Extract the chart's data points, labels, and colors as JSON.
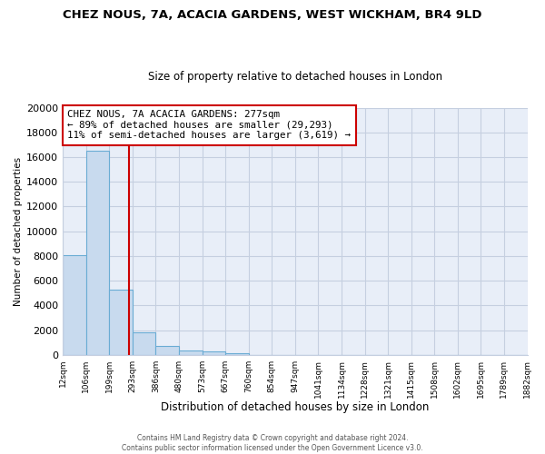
{
  "title": "CHEZ NOUS, 7A, ACACIA GARDENS, WEST WICKHAM, BR4 9LD",
  "subtitle": "Size of property relative to detached houses in London",
  "xlabel": "Distribution of detached houses by size in London",
  "ylabel": "Number of detached properties",
  "bar_values": [
    8100,
    16550,
    5300,
    1850,
    750,
    350,
    250,
    150,
    0,
    0,
    0,
    0,
    0,
    0,
    0,
    0,
    0,
    0,
    0,
    0
  ],
  "bin_labels": [
    "12sqm",
    "106sqm",
    "199sqm",
    "293sqm",
    "386sqm",
    "480sqm",
    "573sqm",
    "667sqm",
    "760sqm",
    "854sqm",
    "947sqm",
    "1041sqm",
    "1134sqm",
    "1228sqm",
    "1321sqm",
    "1415sqm",
    "1508sqm",
    "1602sqm",
    "1695sqm",
    "1789sqm",
    "1882sqm"
  ],
  "bar_color": "#c8daee",
  "bar_edge_color": "#6aacd4",
  "vline_color": "#cc0000",
  "annotation_title": "CHEZ NOUS, 7A ACACIA GARDENS: 277sqm",
  "annotation_line1": "← 89% of detached houses are smaller (29,293)",
  "annotation_line2": "11% of semi-detached houses are larger (3,619) →",
  "annotation_box_color": "#ffffff",
  "annotation_box_edge": "#cc0000",
  "ylim": [
    0,
    20000
  ],
  "yticks": [
    0,
    2000,
    4000,
    6000,
    8000,
    10000,
    12000,
    14000,
    16000,
    18000,
    20000
  ],
  "footer_line1": "Contains HM Land Registry data © Crown copyright and database right 2024.",
  "footer_line2": "Contains public sector information licensed under the Open Government Licence v3.0.",
  "background_color": "#e8eef8",
  "plot_bg_color": "#e8eef8",
  "grid_color": "#c5cfe0"
}
